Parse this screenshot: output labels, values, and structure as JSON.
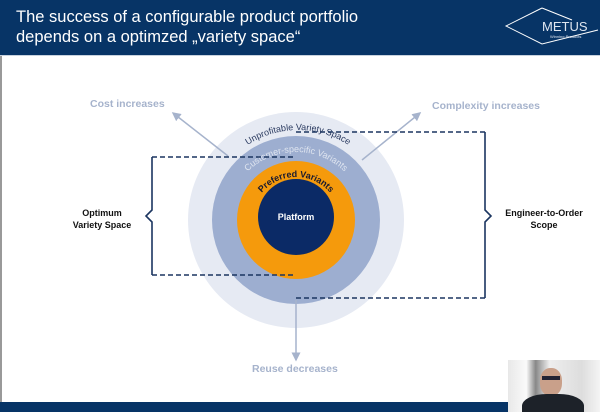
{
  "slide": {
    "title_line1": "The success of a configurable product portfolio",
    "title_line2": "depends on a optimzed „variety space“",
    "logo_text": "METUS",
    "logo_subtext": "Winning Products"
  },
  "diagram": {
    "rings": {
      "outer": "Unprofitable Variety Space",
      "middle": "Customer-specific Variants",
      "inner": "Preferred Variants",
      "core": "Platform"
    },
    "arrows": {
      "top_left": "Cost increases",
      "top_right": "Complexity increases",
      "bottom": "Reuse decreases"
    },
    "brackets": {
      "left_line1": "Optimum",
      "left_line2": "Variety Space",
      "right_line1": "Engineer-to-Order",
      "right_line2": "Scope"
    },
    "colors": {
      "navy": "#0b2a66",
      "orange": "#f59a0c",
      "middle": "#9daed0",
      "outer": "#e6eaf3",
      "arrow": "#a6b3cc"
    }
  }
}
